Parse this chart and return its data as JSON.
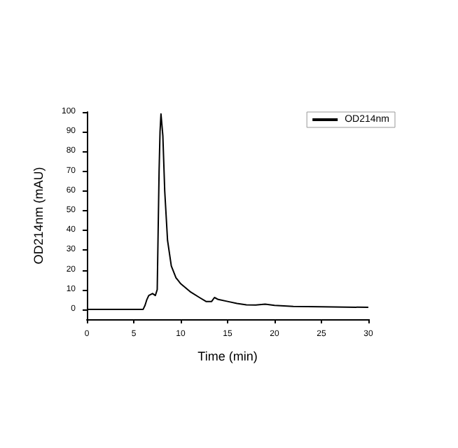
{
  "chart_data": {
    "type": "line",
    "xlabel": "Time (min)",
    "ylabel": "OD214nm (mAU)",
    "xlim": [
      0,
      30
    ],
    "xticks": [
      0,
      5,
      10,
      15,
      20,
      25,
      30
    ],
    "ylim": [
      -5,
      100
    ],
    "yticks": [
      0,
      10,
      20,
      30,
      40,
      50,
      60,
      70,
      80,
      90,
      100
    ],
    "grid": false,
    "legend": "top right",
    "marker": "none",
    "line_style": "solid",
    "series": [
      {
        "name": "OD214nm",
        "color": "#000000",
        "x": [
          0,
          3,
          6,
          6.2,
          6.4,
          6.6,
          7,
          7.3,
          7.5,
          7.6,
          7.7,
          7.8,
          7.9,
          8.1,
          8.3,
          8.6,
          9,
          9.5,
          10,
          11,
          12,
          12.7,
          13.3,
          13.6,
          14,
          15,
          16,
          17,
          18,
          19,
          20,
          22,
          25,
          30
        ],
        "values": [
          0,
          0,
          0,
          2,
          5,
          7,
          8,
          7,
          10,
          40,
          70,
          90,
          99,
          88,
          60,
          35,
          22,
          16,
          13,
          9,
          6,
          4,
          4,
          6,
          5,
          4,
          3,
          2.3,
          2.2,
          2.6,
          2,
          1.5,
          1.3,
          1
        ]
      }
    ]
  }
}
